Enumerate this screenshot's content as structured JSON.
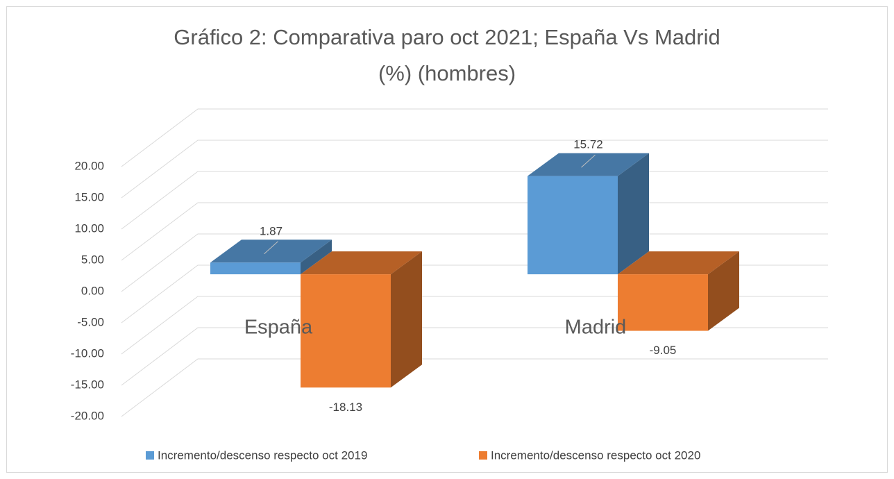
{
  "chart_data": {
    "type": "bar3d",
    "title": "Gráfico 2: Comparativa paro oct 2021; España Vs Madrid (%) (hombres)",
    "categories": [
      "España",
      "Madrid"
    ],
    "series": [
      {
        "name": "Incremento/descenso respecto oct 2019",
        "color": "#5b9bd5",
        "values": [
          1.87,
          15.72
        ]
      },
      {
        "name": "Incremento/descenso respecto oct 2020",
        "color": "#ed7d31",
        "values": [
          -18.13,
          -9.05
        ]
      }
    ],
    "ylim": [
      -20,
      20
    ],
    "yticks": [
      {
        "value": -20,
        "label": "-20.00"
      },
      {
        "value": -15,
        "label": "-15.00"
      },
      {
        "value": -10,
        "label": "-10.00"
      },
      {
        "value": -5,
        "label": "-5.00"
      },
      {
        "value": 0,
        "label": "0.00"
      },
      {
        "value": 5,
        "label": "5.00"
      },
      {
        "value": 10,
        "label": "10.00"
      },
      {
        "value": 15,
        "label": "15.00"
      },
      {
        "value": 20,
        "label": "20.00"
      }
    ],
    "grid": true,
    "legend": "bottom"
  }
}
